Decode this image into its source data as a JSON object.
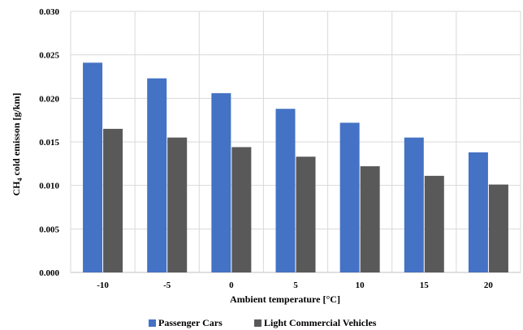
{
  "chart_data": {
    "type": "bar",
    "xlabel": "Ambient temperature [°C]",
    "ylabel_parts": {
      "prefix": "CH",
      "subscript": "4",
      "suffix": " cold emisson [g/km]"
    },
    "categories": [
      "-10",
      "-5",
      "0",
      "5",
      "10",
      "15",
      "20"
    ],
    "series": [
      {
        "name": "Passenger Cars",
        "color": "#4472C4",
        "values": [
          0.0241,
          0.0223,
          0.0206,
          0.0188,
          0.0172,
          0.0155,
          0.0138
        ]
      },
      {
        "name": "Light Commercial Vehicles",
        "color": "#595959",
        "values": [
          0.0165,
          0.0155,
          0.0144,
          0.0133,
          0.0122,
          0.0111,
          0.0101
        ]
      }
    ],
    "ylim": [
      0,
      0.03
    ],
    "yticks": [
      "0.000",
      "0.005",
      "0.010",
      "0.015",
      "0.020",
      "0.025",
      "0.030"
    ],
    "grid": true,
    "legend_position": "bottom",
    "grid_color": "#D9D9D9",
    "axis_color": "#BFBFBF"
  }
}
